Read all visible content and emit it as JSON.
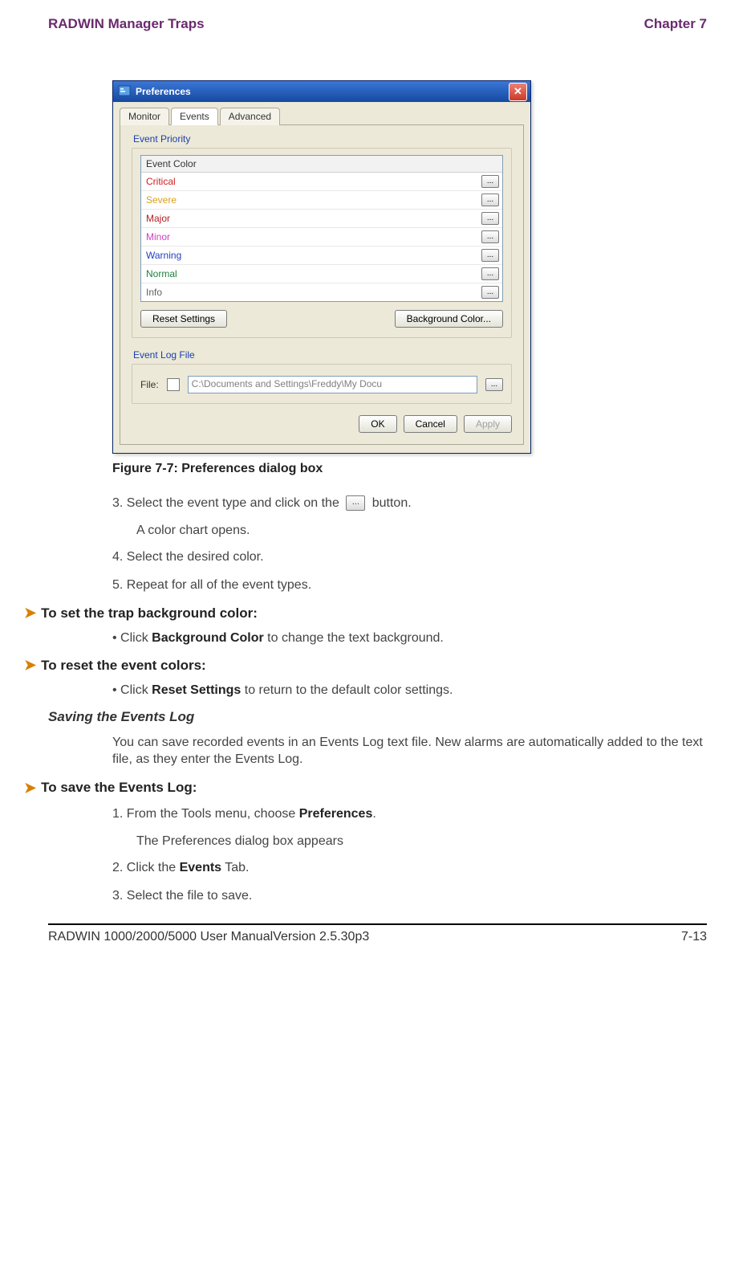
{
  "header": {
    "left": "RADWIN Manager Traps",
    "right": "Chapter 7"
  },
  "dialog": {
    "title": "Preferences",
    "tabs": [
      "Monitor",
      "Events",
      "Advanced"
    ],
    "active_tab_index": 1,
    "group1_label": "Event Priority",
    "list_header": "Event Color",
    "rows": [
      {
        "label": "Critical",
        "color": "#d02020"
      },
      {
        "label": "Severe",
        "color": "#d8a020"
      },
      {
        "label": "Major",
        "color": "#b02020"
      },
      {
        "label": "Minor",
        "color": "#d040c0"
      },
      {
        "label": "Warning",
        "color": "#2040c0"
      },
      {
        "label": "Normal",
        "color": "#208040"
      },
      {
        "label": "Info",
        "color": "#606060"
      }
    ],
    "reset_btn": "Reset Settings",
    "bg_btn": "Background Color...",
    "group2_label": "Event Log File",
    "file_label": "File:",
    "file_path": "C:\\Documents and Settings\\Freddy\\My Docu",
    "ok": "OK",
    "cancel": "Cancel",
    "apply": "Apply"
  },
  "figure_caption": "Figure 7-7: Preferences dialog box",
  "steps_a": {
    "s3_a": "3. Select the event type and click on the ",
    "s3_b": " button.",
    "s3_sub": "A color chart opens.",
    "s4": "4. Select the desired color.",
    "s5": "5. Repeat for all of the event types."
  },
  "task1": "To set the trap background color:",
  "bullet1_a": "Click ",
  "bullet1_b": "Background Color",
  "bullet1_c": " to change the text background.",
  "task2": "To reset the event colors:",
  "bullet2_a": "Click ",
  "bullet2_b": "Reset Settings",
  "bullet2_c": " to return to the default color settings.",
  "subhead_save": "Saving the Events Log",
  "para_save": "You can save recorded events in an Events Log text file. New alarms are automatically added to the text file, as they enter the Events Log.",
  "task3": "To save the Events Log:",
  "steps_b": {
    "s1_a": "1. From the Tools menu, choose ",
    "s1_b": "Preferences",
    "s1_c": ".",
    "s1_sub": "The Preferences dialog box appears",
    "s2_a": "2. Click the ",
    "s2_b": "Events",
    "s2_c": " Tab.",
    "s3": "3. Select the file to save."
  },
  "footer": {
    "left": "RADWIN 1000/2000/5000 User ManualVersion  2.5.30p3",
    "right": "7-13"
  },
  "colors": {
    "heading": "#6b2a6e",
    "arrow": "#d97f00"
  }
}
